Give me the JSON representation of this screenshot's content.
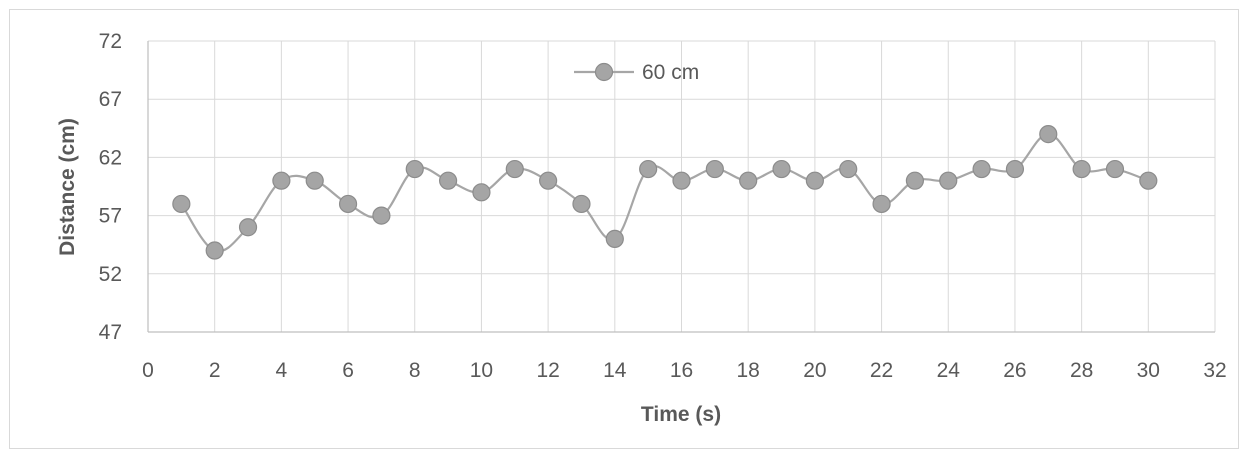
{
  "chart_data": {
    "type": "line",
    "title": "",
    "xlabel": "Time (s)",
    "ylabel": "Distance (cm)",
    "xlim": [
      0,
      32
    ],
    "ylim": [
      47,
      72
    ],
    "xticks": [
      0,
      2,
      4,
      6,
      8,
      10,
      12,
      14,
      16,
      18,
      20,
      22,
      24,
      26,
      28,
      30,
      32
    ],
    "yticks": [
      47,
      52,
      57,
      62,
      67,
      72
    ],
    "grid": true,
    "legend_position": "top-center",
    "series": [
      {
        "name": "60 cm",
        "color": "#a6a6a6",
        "marker_color": "#a5a5a5",
        "x": [
          1,
          2,
          3,
          4,
          5,
          6,
          7,
          8,
          9,
          10,
          11,
          12,
          13,
          14,
          15,
          16,
          17,
          18,
          19,
          20,
          21,
          22,
          23,
          24,
          25,
          26,
          27,
          28,
          29,
          30
        ],
        "y": [
          58,
          54,
          56,
          60,
          60,
          58,
          57,
          61,
          60,
          59,
          61,
          60,
          58,
          55,
          61,
          60,
          61,
          60,
          61,
          60,
          61,
          58,
          60,
          60,
          61,
          61,
          64,
          61,
          61,
          60
        ]
      }
    ]
  }
}
